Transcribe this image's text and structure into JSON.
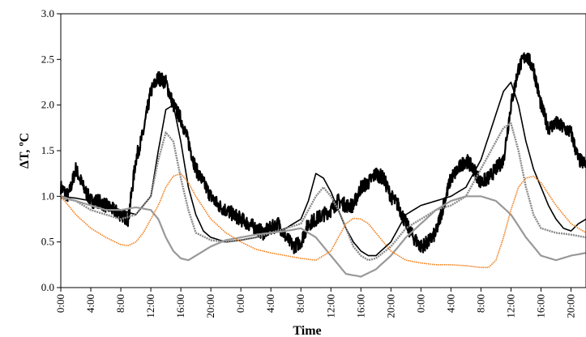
{
  "chart_data": {
    "type": "line",
    "xlabel": "Time",
    "ylabel": "ΔT, ºC",
    "ylim": [
      0,
      3.0
    ],
    "y_ticks": [
      "0.0",
      "0.5",
      "1.0",
      "1.5",
      "2.0",
      "2.5",
      "3.0"
    ],
    "xlim": [
      0,
      70
    ],
    "x_ticks": [
      "0:00",
      "4:00",
      "8:00",
      "12:00",
      "16:00",
      "20:00",
      "0:00",
      "4:00",
      "8:00",
      "12:00",
      "16:00",
      "20:00",
      "0:00",
      "4:00",
      "8:00",
      "12:00",
      "16:00",
      "20:00"
    ],
    "x_tick_interval_hours": 4,
    "grid": false,
    "legend": "none",
    "series": [
      {
        "color": "#000000",
        "style": "thick-noisy",
        "x": [
          0,
          1,
          2,
          3,
          4,
          5,
          6,
          7,
          8,
          9,
          10,
          11,
          12,
          13,
          14,
          15,
          16,
          17,
          18,
          19,
          20,
          21,
          22,
          23,
          24,
          25,
          26,
          27,
          28,
          29,
          30,
          31,
          32,
          33,
          34,
          35,
          36,
          37,
          38,
          39,
          40,
          41,
          42,
          43,
          44,
          45,
          46,
          47,
          48,
          49,
          50,
          51,
          52,
          53,
          54,
          55,
          56,
          57,
          58,
          59,
          60,
          61,
          62,
          63,
          64,
          65,
          66,
          67,
          68,
          69,
          70
        ],
        "values": [
          1.1,
          1.0,
          1.3,
          1.1,
          0.95,
          0.95,
          0.9,
          0.85,
          0.8,
          0.75,
          1.4,
          1.7,
          2.15,
          2.3,
          2.25,
          2.0,
          1.85,
          1.6,
          1.3,
          1.15,
          1.0,
          0.9,
          0.85,
          0.8,
          0.75,
          0.7,
          0.65,
          0.6,
          0.65,
          0.7,
          0.55,
          0.45,
          0.5,
          0.7,
          0.75,
          0.8,
          0.85,
          0.95,
          0.9,
          0.9,
          1.1,
          1.15,
          1.25,
          1.2,
          1.0,
          0.9,
          0.7,
          0.55,
          0.45,
          0.5,
          0.6,
          0.9,
          1.2,
          1.3,
          1.4,
          1.3,
          1.15,
          1.2,
          1.3,
          1.4,
          2.0,
          2.4,
          2.55,
          2.4,
          2.0,
          1.75,
          1.8,
          1.75,
          1.7,
          1.4,
          1.35
        ],
        "noise": 0.08
      },
      {
        "color": "#000000",
        "style": "thin",
        "x": [
          0,
          2,
          4,
          6,
          8,
          10,
          12,
          13,
          14,
          15,
          16,
          17,
          18,
          19,
          20,
          22,
          24,
          26,
          28,
          30,
          32,
          33,
          34,
          35,
          36,
          37,
          38,
          39,
          40,
          41,
          42,
          44,
          46,
          48,
          50,
          52,
          54,
          56,
          58,
          59,
          60,
          61,
          62,
          63,
          64,
          65,
          66,
          67,
          68,
          69,
          70
        ],
        "values": [
          1.0,
          0.98,
          0.95,
          0.9,
          0.85,
          0.8,
          1.0,
          1.5,
          1.95,
          2.0,
          1.6,
          1.1,
          0.8,
          0.62,
          0.55,
          0.5,
          0.52,
          0.55,
          0.6,
          0.65,
          0.75,
          0.95,
          1.25,
          1.2,
          1.05,
          0.85,
          0.65,
          0.5,
          0.4,
          0.35,
          0.35,
          0.5,
          0.8,
          0.9,
          0.95,
          1.0,
          1.1,
          1.4,
          1.9,
          2.15,
          2.25,
          2.0,
          1.6,
          1.3,
          1.1,
          0.9,
          0.75,
          0.65,
          0.62,
          0.7,
          0.75
        ]
      },
      {
        "color": "#8a8a8a",
        "style": "dotted-thick",
        "x": [
          0,
          2,
          4,
          6,
          8,
          10,
          12,
          13,
          14,
          15,
          16,
          17,
          18,
          20,
          22,
          24,
          26,
          28,
          30,
          32,
          33,
          34,
          35,
          36,
          37,
          38,
          39,
          40,
          41,
          42,
          44,
          46,
          48,
          50,
          52,
          54,
          56,
          58,
          59,
          60,
          61,
          62,
          63,
          64,
          66,
          68,
          70
        ],
        "values": [
          0.98,
          0.95,
          0.85,
          0.8,
          0.75,
          0.8,
          1.0,
          1.4,
          1.7,
          1.6,
          1.2,
          0.85,
          0.6,
          0.52,
          0.5,
          0.52,
          0.55,
          0.6,
          0.65,
          0.7,
          0.85,
          1.0,
          1.1,
          1.0,
          0.85,
          0.65,
          0.45,
          0.35,
          0.3,
          0.32,
          0.45,
          0.65,
          0.75,
          0.85,
          0.9,
          1.0,
          1.3,
          1.6,
          1.75,
          1.8,
          1.5,
          1.1,
          0.8,
          0.65,
          0.6,
          0.58,
          0.55
        ]
      },
      {
        "color": "#999999",
        "style": "solid-medium",
        "x": [
          0,
          2,
          4,
          6,
          8,
          10,
          12,
          13,
          14,
          15,
          16,
          17,
          18,
          20,
          22,
          24,
          26,
          28,
          30,
          32,
          34,
          36,
          38,
          40,
          42,
          44,
          46,
          48,
          50,
          52,
          54,
          56,
          58,
          60,
          62,
          64,
          66,
          68,
          70
        ],
        "values": [
          1.0,
          0.95,
          0.9,
          0.85,
          0.85,
          0.88,
          0.85,
          0.75,
          0.55,
          0.4,
          0.32,
          0.3,
          0.35,
          0.45,
          0.52,
          0.55,
          0.58,
          0.6,
          0.62,
          0.65,
          0.55,
          0.35,
          0.15,
          0.12,
          0.2,
          0.35,
          0.55,
          0.7,
          0.85,
          0.95,
          1.0,
          1.0,
          0.95,
          0.8,
          0.55,
          0.35,
          0.3,
          0.35,
          0.38
        ]
      },
      {
        "color": "#f07d1a",
        "style": "dotted-thin",
        "x": [
          0,
          2,
          4,
          6,
          8,
          9,
          10,
          11,
          12,
          13,
          14,
          15,
          16,
          17,
          18,
          20,
          22,
          24,
          26,
          28,
          30,
          32,
          34,
          36,
          37,
          38,
          39,
          40,
          41,
          42,
          44,
          46,
          48,
          50,
          52,
          54,
          56,
          57,
          58,
          59,
          60,
          61,
          62,
          63,
          64,
          66,
          68,
          70
        ],
        "values": [
          1.0,
          0.8,
          0.65,
          0.55,
          0.47,
          0.46,
          0.5,
          0.6,
          0.75,
          0.9,
          1.1,
          1.22,
          1.25,
          1.15,
          1.0,
          0.75,
          0.6,
          0.5,
          0.42,
          0.38,
          0.35,
          0.32,
          0.3,
          0.4,
          0.55,
          0.7,
          0.76,
          0.75,
          0.7,
          0.6,
          0.4,
          0.3,
          0.27,
          0.25,
          0.25,
          0.24,
          0.22,
          0.22,
          0.3,
          0.55,
          0.85,
          1.1,
          1.2,
          1.22,
          1.15,
          0.9,
          0.7,
          0.6
        ]
      }
    ]
  }
}
